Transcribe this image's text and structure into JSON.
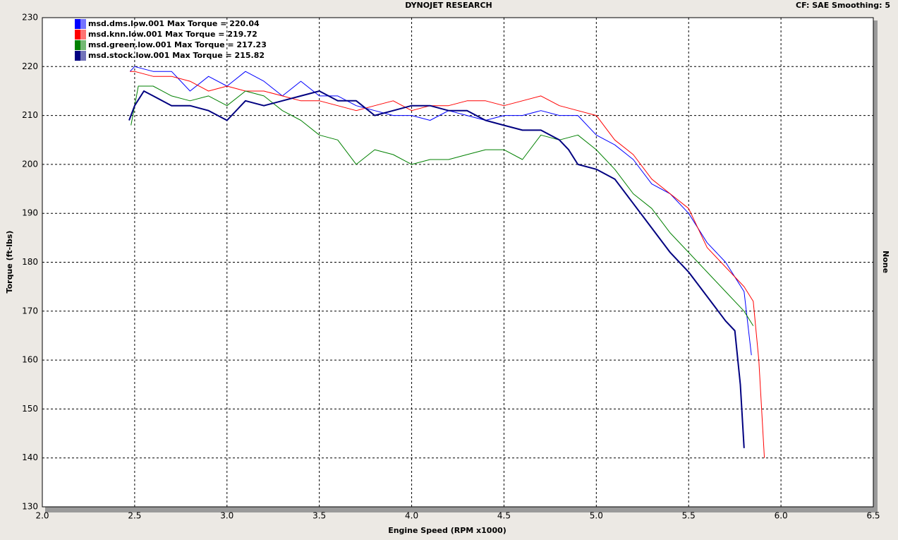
{
  "chart_data": {
    "type": "line",
    "title": "DYNOJET RESEARCH",
    "subtitle": "CF: SAE  Smoothing: 5",
    "right_label": "None",
    "x_label": "Engine Speed (RPM x1000)",
    "y_label": "Torque (ft-lbs)",
    "xlim": [
      2.0,
      6.5
    ],
    "ylim": [
      130,
      230
    ],
    "xticks": [
      {
        "value": 2,
        "label": "2.0"
      },
      2.5,
      {
        "value": 3,
        "label": "3.0"
      },
      3.5,
      {
        "value": 4,
        "label": "4.0"
      },
      4.5,
      {
        "value": 5,
        "label": "5.0"
      },
      5.5,
      {
        "value": 6,
        "label": "6.0"
      },
      6.5
    ],
    "yticks": [
      130,
      140,
      150,
      160,
      170,
      180,
      190,
      200,
      210,
      220,
      230
    ],
    "grid": true,
    "legend": "top-left",
    "series": [
      {
        "name": "msd.dms.low.001 Max Torque = 220.04",
        "color": "#0000ff",
        "width": 1,
        "x": [
          2.475,
          2.5,
          2.6,
          2.7,
          2.8,
          2.9,
          3.0,
          3.1,
          3.2,
          3.3,
          3.4,
          3.5,
          3.6,
          3.7,
          3.8,
          3.9,
          4.0,
          4.1,
          4.2,
          4.3,
          4.4,
          4.5,
          4.6,
          4.7,
          4.8,
          4.9,
          5.0,
          5.1,
          5.2,
          5.3,
          5.4,
          5.5,
          5.6,
          5.7,
          5.75,
          5.8,
          5.84
        ],
        "values": [
          219,
          220,
          219,
          219,
          215,
          218,
          216,
          219,
          217,
          214,
          217,
          214,
          214,
          212,
          211,
          210,
          210,
          209,
          211,
          210,
          209,
          210,
          210,
          211,
          210,
          210,
          206,
          204,
          201,
          196,
          194,
          190,
          184,
          180,
          177,
          174,
          161
        ]
      },
      {
        "name": "msd.knn.low.001 Max Torque = 219.72",
        "color": "#ff0000",
        "width": 1,
        "x": [
          2.475,
          2.5,
          2.6,
          2.7,
          2.8,
          2.9,
          3.0,
          3.1,
          3.2,
          3.3,
          3.4,
          3.5,
          3.6,
          3.7,
          3.8,
          3.9,
          4.0,
          4.1,
          4.2,
          4.3,
          4.4,
          4.5,
          4.6,
          4.7,
          4.8,
          4.9,
          5.0,
          5.1,
          5.2,
          5.3,
          5.4,
          5.5,
          5.6,
          5.7,
          5.8,
          5.85,
          5.88,
          5.91
        ],
        "values": [
          219,
          219,
          218,
          218,
          217,
          215,
          216,
          215,
          215,
          214,
          213,
          213,
          212,
          211,
          212,
          213,
          211,
          212,
          212,
          213,
          213,
          212,
          213,
          214,
          212,
          211,
          210,
          205,
          202,
          197,
          194,
          191,
          183,
          179,
          175,
          172,
          160,
          140
        ]
      },
      {
        "name": "msd.green.low.001 Max Torque = 217.23",
        "color": "#008000",
        "width": 1,
        "x": [
          2.48,
          2.52,
          2.6,
          2.7,
          2.8,
          2.9,
          3.0,
          3.1,
          3.2,
          3.3,
          3.4,
          3.5,
          3.6,
          3.7,
          3.8,
          3.9,
          4.0,
          4.1,
          4.2,
          4.3,
          4.4,
          4.5,
          4.6,
          4.7,
          4.8,
          4.9,
          5.0,
          5.1,
          5.2,
          5.3,
          5.4,
          5.5,
          5.6,
          5.7,
          5.8,
          5.85
        ],
        "values": [
          208,
          216,
          216,
          214,
          213,
          214,
          212,
          215,
          214,
          211,
          209,
          206,
          205,
          200,
          203,
          202,
          200,
          201,
          201,
          202,
          203,
          203,
          201,
          206,
          205,
          206,
          203,
          199,
          194,
          191,
          186,
          182,
          178,
          174,
          170,
          167
        ]
      },
      {
        "name": "msd.stock.low.001 Max Torque = 215.82",
        "color": "#000080",
        "width": 2,
        "x": [
          2.47,
          2.5,
          2.55,
          2.6,
          2.7,
          2.8,
          2.9,
          3.0,
          3.1,
          3.2,
          3.3,
          3.4,
          3.5,
          3.6,
          3.7,
          3.8,
          3.9,
          4.0,
          4.1,
          4.2,
          4.3,
          4.4,
          4.5,
          4.6,
          4.7,
          4.8,
          4.85,
          4.9,
          5.0,
          5.1,
          5.2,
          5.3,
          5.4,
          5.5,
          5.6,
          5.7,
          5.75,
          5.78,
          5.8
        ],
        "values": [
          209,
          212,
          215,
          214,
          212,
          212,
          211,
          209,
          213,
          212,
          213,
          214,
          215,
          213,
          213,
          210,
          211,
          212,
          212,
          211,
          211,
          209,
          208,
          207,
          207,
          205,
          203,
          200,
          199,
          197,
          192,
          187,
          182,
          178,
          173,
          168,
          166,
          155,
          142
        ]
      }
    ]
  }
}
